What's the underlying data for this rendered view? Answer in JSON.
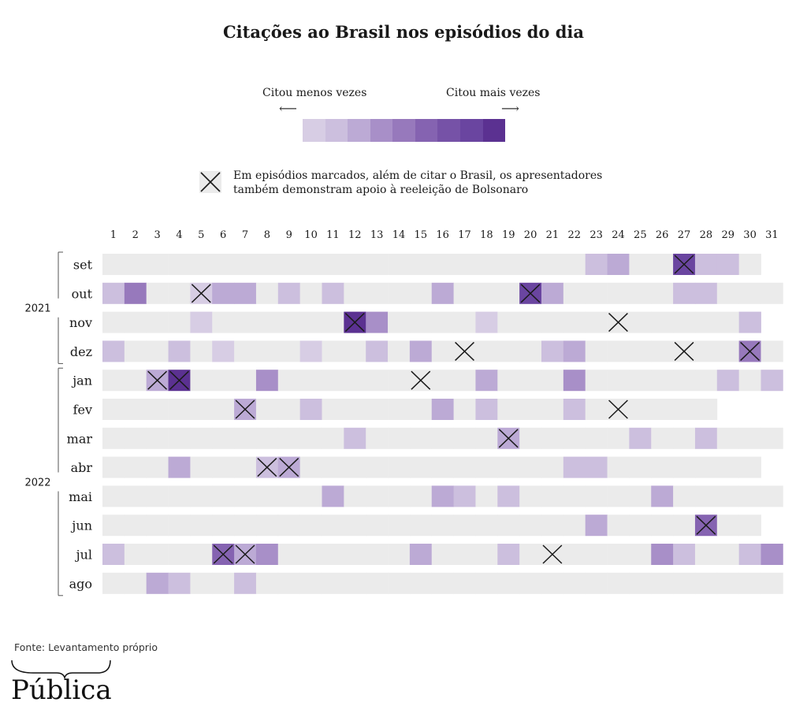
{
  "chart_data": {
    "type": "heatmap",
    "title": "Citações ao Brasil nos episódios do dia",
    "legend": {
      "low_label": "Citou menos vezes",
      "high_label": "Citou mais vezes",
      "arrow_left": "⟵",
      "arrow_right": "⟶",
      "scale_levels": 9,
      "marker_note_line1": "Em episódios marcados, além de citar o Brasil, os apresentadores",
      "marker_note_line2": "também demonstram apoio à reeleição de Bolsonaro"
    },
    "colors": {
      "empty": "#ebebeb",
      "scale": [
        "#d7cde4",
        "#ccbfde",
        "#bcaad5",
        "#a88fc8",
        "#9779bc",
        "#8563b1",
        "#7652a7",
        "#6a45a0",
        "#5b3191"
      ],
      "marker": "#1a1a1a"
    },
    "days": [
      "1",
      "2",
      "3",
      "4",
      "5",
      "6",
      "7",
      "8",
      "9",
      "10",
      "11",
      "12",
      "13",
      "14",
      "15",
      "16",
      "17",
      "18",
      "19",
      "20",
      "21",
      "22",
      "23",
      "24",
      "25",
      "26",
      "27",
      "28",
      "29",
      "30",
      "31"
    ],
    "year_groups": [
      {
        "label": "2021",
        "months": [
          "set",
          "out",
          "nov",
          "dez"
        ]
      },
      {
        "label": "2022",
        "months": [
          "jan",
          "fev",
          "mar",
          "abr",
          "mai",
          "jun",
          "jul",
          "ago"
        ]
      }
    ],
    "months": [
      {
        "label": "set",
        "days_in_month": 30,
        "levels": {
          "23": 2,
          "24": 3,
          "27": 8,
          "28": 2,
          "29": 2
        },
        "marked": [
          27
        ]
      },
      {
        "label": "out",
        "days_in_month": 31,
        "levels": {
          "1": 2,
          "2": 5,
          "5": 1,
          "6": 3,
          "7": 3,
          "9": 2,
          "11": 2,
          "16": 3,
          "20": 8,
          "21": 3,
          "27": 2,
          "28": 2
        },
        "marked": [
          5,
          20
        ]
      },
      {
        "label": "nov",
        "days_in_month": 30,
        "levels": {
          "5": 1,
          "12": 9,
          "13": 4,
          "18": 1,
          "30": 2
        },
        "marked": [
          12,
          24
        ]
      },
      {
        "label": "dez",
        "days_in_month": 31,
        "levels": {
          "1": 2,
          "4": 2,
          "6": 1,
          "10": 1,
          "13": 2,
          "15": 3,
          "21": 2,
          "22": 3,
          "30": 5
        },
        "marked": [
          17,
          27,
          30
        ]
      },
      {
        "label": "jan",
        "days_in_month": 31,
        "levels": {
          "3": 3,
          "4": 9,
          "8": 4,
          "18": 3,
          "22": 4,
          "29": 2,
          "31": 2
        },
        "marked": [
          3,
          4,
          15
        ]
      },
      {
        "label": "fev",
        "days_in_month": 28,
        "levels": {
          "7": 3,
          "10": 2,
          "16": 3,
          "18": 2,
          "22": 2
        },
        "marked": [
          7,
          24
        ]
      },
      {
        "label": "mar",
        "days_in_month": 31,
        "levels": {
          "12": 2,
          "19": 3,
          "25": 2,
          "28": 2
        },
        "marked": [
          19
        ]
      },
      {
        "label": "abr",
        "days_in_month": 30,
        "levels": {
          "4": 3,
          "8": 2,
          "9": 3,
          "22": 2,
          "23": 2
        },
        "marked": [
          8,
          9
        ]
      },
      {
        "label": "mai",
        "days_in_month": 31,
        "levels": {
          "11": 3,
          "16": 3,
          "17": 2,
          "19": 2,
          "26": 3
        },
        "marked": []
      },
      {
        "label": "jun",
        "days_in_month": 30,
        "levels": {
          "23": 3,
          "28": 6
        },
        "marked": [
          28
        ]
      },
      {
        "label": "jul",
        "days_in_month": 31,
        "levels": {
          "1": 2,
          "6": 6,
          "7": 3,
          "8": 4,
          "15": 3,
          "19": 2,
          "26": 4,
          "27": 2,
          "30": 2,
          "31": 4
        },
        "marked": [
          6,
          7,
          21
        ]
      },
      {
        "label": "ago",
        "days_in_month": 31,
        "levels": {
          "3": 3,
          "4": 2,
          "7": 2
        },
        "marked": []
      }
    ]
  },
  "footer": {
    "source": "Fonte: Levantamento próprio",
    "logo_text": "Pública"
  }
}
